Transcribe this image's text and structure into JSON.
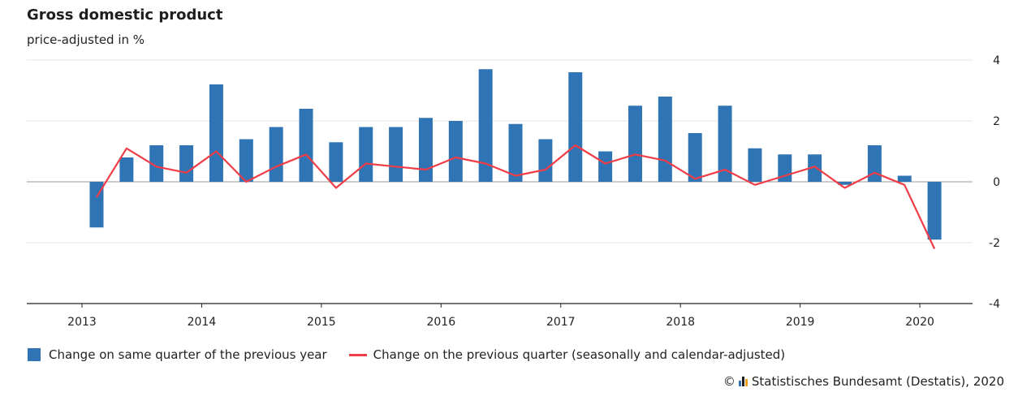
{
  "title": "Gross domestic product",
  "subtitle": "price-adjusted in %",
  "colors": {
    "bar": "#2f75b5",
    "line": "#f03c46",
    "grid": "#e6e6e6",
    "axis": "#222222"
  },
  "legend": {
    "bars_label": "Change on same quarter of the previous year",
    "line_label": "Change on the previous quarter (seasonally and calendar-adjusted)"
  },
  "source": {
    "copyright": "©",
    "text": "Statistisches Bundesamt (Destatis), 2020",
    "logo_icon": "destatis-logo-icon"
  },
  "chart_data": {
    "type": "bar",
    "title": "Gross domestic product",
    "ylabel": "price-adjusted in %",
    "ylim": [
      -4,
      4
    ],
    "yticks": [
      4,
      2,
      0,
      -2,
      -4
    ],
    "year_labels": [
      "2013",
      "2014",
      "2015",
      "2016",
      "2017",
      "2018",
      "2019",
      "2020"
    ],
    "categories": [
      "2013 Q1",
      "2013 Q2",
      "2013 Q3",
      "2013 Q4",
      "2014 Q1",
      "2014 Q2",
      "2014 Q3",
      "2014 Q4",
      "2015 Q1",
      "2015 Q2",
      "2015 Q3",
      "2015 Q4",
      "2016 Q1",
      "2016 Q2",
      "2016 Q3",
      "2016 Q4",
      "2017 Q1",
      "2017 Q2",
      "2017 Q3",
      "2017 Q4",
      "2018 Q1",
      "2018 Q2",
      "2018 Q3",
      "2018 Q4",
      "2019 Q1",
      "2019 Q2",
      "2019 Q3",
      "2019 Q4",
      "2020 Q1"
    ],
    "series": [
      {
        "name": "Change on same quarter of the previous year",
        "type": "bar",
        "values": [
          -1.5,
          0.8,
          1.2,
          1.2,
          3.2,
          1.4,
          1.8,
          2.4,
          1.3,
          1.8,
          1.8,
          2.1,
          2.0,
          3.7,
          1.9,
          1.4,
          3.6,
          1.0,
          2.5,
          2.8,
          1.6,
          2.5,
          1.1,
          0.9,
          0.9,
          -0.1,
          1.2,
          0.2,
          -1.9
        ]
      },
      {
        "name": "Change on the previous quarter (seasonally and calendar-adjusted)",
        "type": "line",
        "values": [
          -0.5,
          1.1,
          0.5,
          0.3,
          1.0,
          0.0,
          0.5,
          0.9,
          -0.2,
          0.6,
          0.5,
          0.4,
          0.8,
          0.6,
          0.2,
          0.4,
          1.2,
          0.6,
          0.9,
          0.7,
          0.1,
          0.4,
          -0.1,
          0.2,
          0.5,
          -0.2,
          0.3,
          -0.1,
          -2.2
        ]
      }
    ]
  }
}
